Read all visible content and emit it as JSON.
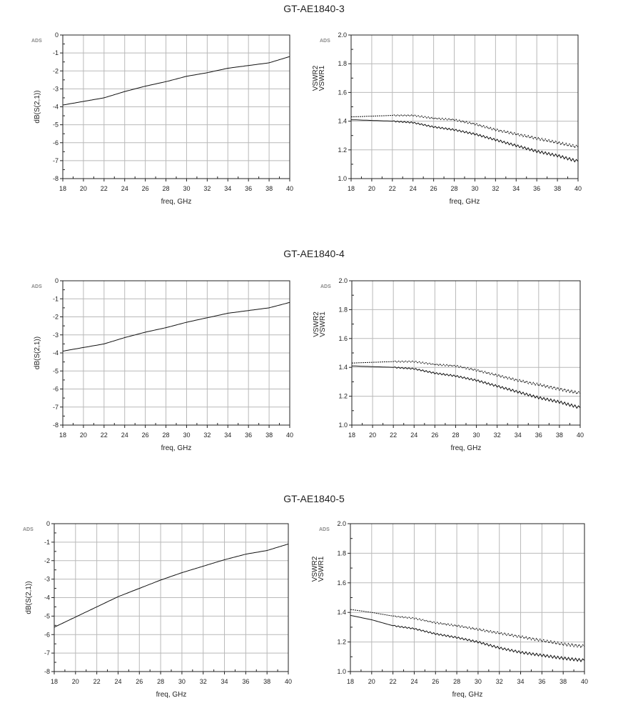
{
  "sections": [
    {
      "title": "GT-AE1840-3",
      "charts": [
        {
          "type": "line",
          "badge": "ADS",
          "xlabel": "freq, GHz",
          "ylabel": "dB(S(2,1))",
          "xlim": [
            18,
            40
          ],
          "ylim": [
            -8,
            0
          ],
          "xticks": [
            18,
            20,
            22,
            24,
            26,
            28,
            30,
            32,
            34,
            36,
            38,
            40
          ],
          "yticks": [
            0,
            -1,
            -2,
            -3,
            -4,
            -5,
            -6,
            -7,
            -8
          ],
          "series": [
            {
              "name": "dB(S(2,1))",
              "style": "solid",
              "x": [
                18,
                20,
                22,
                24,
                26,
                28,
                30,
                32,
                34,
                36,
                38,
                40
              ],
              "y": [
                -3.9,
                -3.7,
                -3.5,
                -3.15,
                -2.85,
                -2.6,
                -2.3,
                -2.1,
                -1.85,
                -1.7,
                -1.55,
                -1.2
              ]
            }
          ]
        },
        {
          "type": "line",
          "badge": "ADS",
          "xlabel": "freq, GHz",
          "ylabel_lines": [
            "VSWR2",
            "VSWR1"
          ],
          "xlim": [
            18,
            40
          ],
          "ylim": [
            1.0,
            2.0
          ],
          "xticks": [
            18,
            20,
            22,
            24,
            26,
            28,
            30,
            32,
            34,
            36,
            38,
            40
          ],
          "yticks": [
            2.0,
            1.8,
            1.6,
            1.4,
            1.2,
            1.0
          ],
          "series": [
            {
              "name": "VSWR2",
              "style": "dotted",
              "x": [
                18,
                20,
                22,
                24,
                26,
                28,
                30,
                32,
                34,
                36,
                38,
                40
              ],
              "y": [
                1.43,
                1.435,
                1.44,
                1.44,
                1.42,
                1.41,
                1.38,
                1.34,
                1.31,
                1.28,
                1.25,
                1.22
              ]
            },
            {
              "name": "VSWR1",
              "style": "solid",
              "x": [
                18,
                20,
                22,
                24,
                26,
                28,
                30,
                32,
                34,
                36,
                38,
                40
              ],
              "y": [
                1.41,
                1.405,
                1.4,
                1.39,
                1.36,
                1.34,
                1.31,
                1.27,
                1.23,
                1.19,
                1.16,
                1.12
              ]
            }
          ]
        }
      ]
    },
    {
      "title": "GT-AE1840-4",
      "charts": [
        {
          "type": "line",
          "badge": "ADS",
          "xlabel": "freq, GHz",
          "ylabel": "dB(S(2,1))",
          "xlim": [
            18,
            40
          ],
          "ylim": [
            -8,
            0
          ],
          "xticks": [
            18,
            20,
            22,
            24,
            26,
            28,
            30,
            32,
            34,
            36,
            38,
            40
          ],
          "yticks": [
            0,
            -1,
            -2,
            -3,
            -4,
            -5,
            -6,
            -7,
            -8
          ],
          "series": [
            {
              "name": "dB(S(2,1))",
              "style": "solid",
              "x": [
                18,
                20,
                22,
                24,
                26,
                28,
                30,
                32,
                34,
                36,
                38,
                40
              ],
              "y": [
                -3.9,
                -3.7,
                -3.5,
                -3.15,
                -2.85,
                -2.6,
                -2.3,
                -2.05,
                -1.8,
                -1.65,
                -1.5,
                -1.2
              ]
            }
          ]
        },
        {
          "type": "line",
          "badge": "ADS",
          "xlabel": "freq, GHz",
          "ylabel_lines": [
            "VSWR2",
            "VSWR1"
          ],
          "xlim": [
            18,
            40
          ],
          "ylim": [
            1.0,
            2.0
          ],
          "xticks": [
            18,
            20,
            22,
            24,
            26,
            28,
            30,
            32,
            34,
            36,
            38,
            40
          ],
          "yticks": [
            2.0,
            1.8,
            1.6,
            1.4,
            1.2,
            1.0
          ],
          "series": [
            {
              "name": "VSWR2",
              "style": "dotted",
              "x": [
                18,
                20,
                22,
                24,
                26,
                28,
                30,
                32,
                34,
                36,
                38,
                40
              ],
              "y": [
                1.43,
                1.435,
                1.44,
                1.44,
                1.42,
                1.41,
                1.38,
                1.345,
                1.31,
                1.28,
                1.25,
                1.22
              ]
            },
            {
              "name": "VSWR1",
              "style": "solid",
              "x": [
                18,
                20,
                22,
                24,
                26,
                28,
                30,
                32,
                34,
                36,
                38,
                40
              ],
              "y": [
                1.41,
                1.405,
                1.4,
                1.39,
                1.36,
                1.34,
                1.31,
                1.27,
                1.23,
                1.19,
                1.16,
                1.12
              ]
            }
          ]
        }
      ]
    },
    {
      "title": "GT-AE1840-5",
      "charts": [
        {
          "type": "line",
          "badge": "ADS",
          "xlabel": "freq, GHz",
          "ylabel": "dB(S(2,1))",
          "xlim": [
            18,
            40
          ],
          "ylim": [
            -8,
            0
          ],
          "xticks": [
            18,
            20,
            22,
            24,
            26,
            28,
            30,
            32,
            34,
            36,
            38,
            40
          ],
          "yticks": [
            0,
            -1,
            -2,
            -3,
            -4,
            -5,
            -6,
            -7,
            -8
          ],
          "series": [
            {
              "name": "dB(S(2,1))",
              "style": "solid",
              "x": [
                18,
                20,
                22,
                24,
                26,
                28,
                30,
                32,
                34,
                36,
                38,
                40
              ],
              "y": [
                -5.6,
                -5.05,
                -4.5,
                -3.95,
                -3.5,
                -3.05,
                -2.65,
                -2.3,
                -1.95,
                -1.65,
                -1.45,
                -1.1
              ]
            }
          ]
        },
        {
          "type": "line",
          "badge": "ADS",
          "xlabel": "freq, GHz",
          "ylabel_lines": [
            "VSWR2",
            "VSWR1"
          ],
          "xlim": [
            18,
            40
          ],
          "ylim": [
            1.0,
            2.0
          ],
          "xticks": [
            18,
            20,
            22,
            24,
            26,
            28,
            30,
            32,
            34,
            36,
            38,
            40
          ],
          "yticks": [
            2.0,
            1.8,
            1.6,
            1.4,
            1.2,
            1.0
          ],
          "series": [
            {
              "name": "VSWR2",
              "style": "dotted",
              "x": [
                18,
                20,
                22,
                24,
                26,
                28,
                30,
                32,
                34,
                36,
                38,
                40
              ],
              "y": [
                1.42,
                1.4,
                1.375,
                1.36,
                1.33,
                1.31,
                1.285,
                1.26,
                1.235,
                1.21,
                1.185,
                1.17
              ]
            },
            {
              "name": "VSWR1",
              "style": "solid",
              "x": [
                18,
                20,
                22,
                24,
                26,
                28,
                30,
                32,
                34,
                36,
                38,
                40
              ],
              "y": [
                1.38,
                1.35,
                1.31,
                1.29,
                1.255,
                1.23,
                1.2,
                1.16,
                1.13,
                1.11,
                1.09,
                1.075
              ]
            }
          ]
        }
      ]
    }
  ]
}
